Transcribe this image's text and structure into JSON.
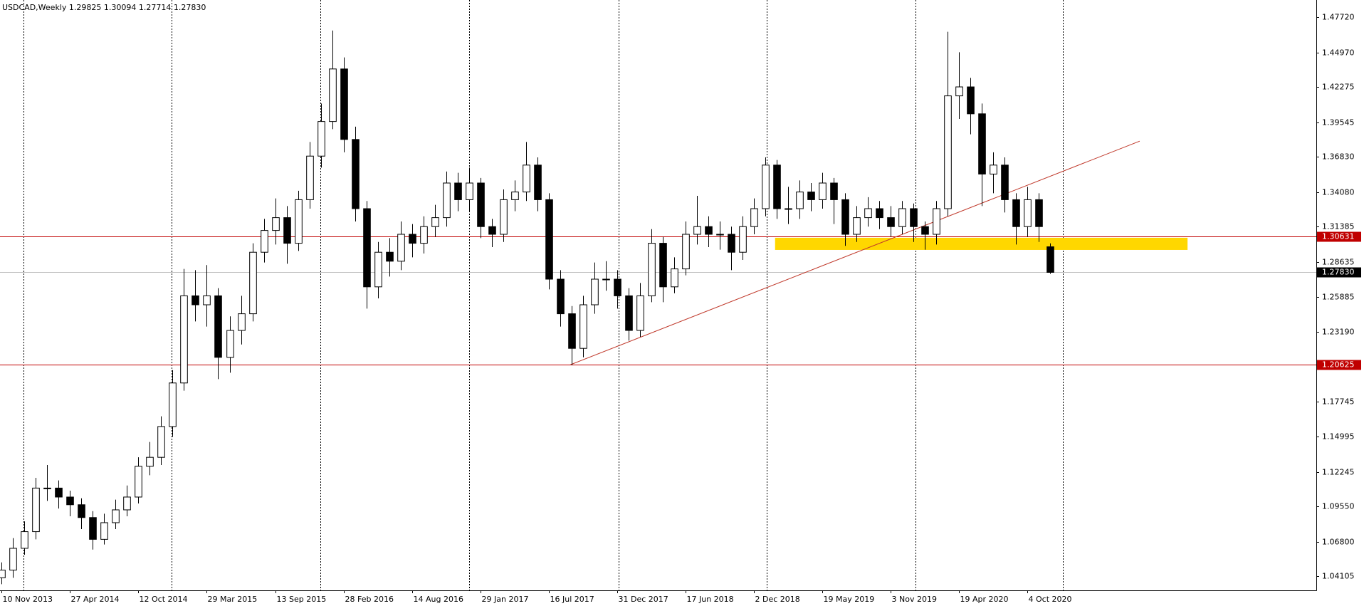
{
  "chart_data": {
    "type": "candlestick",
    "header": "USDCAD,Weekly  1.29825 1.30094 1.27714 1.27830",
    "x": [
      0,
      4,
      8,
      12,
      16,
      20,
      24,
      28,
      32,
      36,
      40,
      44,
      48,
      52,
      56,
      60,
      64,
      68,
      72,
      76,
      80,
      84,
      88,
      92,
      96,
      100,
      104,
      108,
      112,
      116,
      120,
      124,
      128,
      132,
      136,
      140,
      144,
      148,
      152,
      156,
      160,
      164,
      168,
      172,
      176,
      180,
      184,
      188,
      192,
      196,
      200,
      204,
      208,
      212,
      216,
      220,
      224,
      228,
      232,
      236,
      240,
      244,
      248,
      252,
      256,
      260,
      264,
      268,
      272,
      276,
      280,
      284,
      288,
      292,
      296,
      300,
      304,
      308,
      312,
      316,
      320,
      324,
      328,
      332,
      336,
      340,
      344,
      348,
      352,
      356,
      360,
      364,
      368
    ],
    "open": [
      1.04,
      1.046,
      1.063,
      1.076,
      1.11,
      1.11,
      1.103,
      1.097,
      1.087,
      1.07,
      1.083,
      1.093,
      1.103,
      1.127,
      1.134,
      1.158,
      1.192,
      1.26,
      1.253,
      1.26,
      1.212,
      1.233,
      1.246,
      1.294,
      1.311,
      1.321,
      1.301,
      1.335,
      1.369,
      1.396,
      1.437,
      1.382,
      1.328,
      1.267,
      1.294,
      1.287,
      1.308,
      1.301,
      1.314,
      1.321,
      1.348,
      1.335,
      1.348,
      1.314,
      1.308,
      1.335,
      1.341,
      1.362,
      1.335,
      1.273,
      1.246,
      1.219,
      1.253,
      1.273,
      1.273,
      1.26,
      1.233,
      1.26,
      1.301,
      1.267,
      1.281,
      1.308,
      1.314,
      1.308,
      1.308,
      1.294,
      1.314,
      1.328,
      1.362,
      1.328,
      1.328,
      1.341,
      1.335,
      1.348,
      1.335,
      1.308,
      1.321,
      1.328,
      1.321,
      1.314,
      1.328,
      1.314,
      1.308,
      1.328,
      1.416,
      1.423,
      1.402,
      1.355,
      1.362,
      1.335,
      1.314,
      1.335,
      1.29825
    ],
    "high": [
      1.052,
      1.071,
      1.084,
      1.118,
      1.128,
      1.116,
      1.108,
      1.102,
      1.092,
      1.09,
      1.101,
      1.112,
      1.134,
      1.146,
      1.166,
      1.202,
      1.281,
      1.28,
      1.284,
      1.266,
      1.244,
      1.26,
      1.301,
      1.32,
      1.336,
      1.33,
      1.342,
      1.38,
      1.41,
      1.467,
      1.446,
      1.392,
      1.334,
      1.302,
      1.305,
      1.318,
      1.316,
      1.322,
      1.331,
      1.357,
      1.356,
      1.36,
      1.352,
      1.32,
      1.343,
      1.35,
      1.38,
      1.368,
      1.34,
      1.28,
      1.252,
      1.26,
      1.286,
      1.287,
      1.28,
      1.266,
      1.27,
      1.312,
      1.306,
      1.29,
      1.318,
      1.338,
      1.322,
      1.318,
      1.314,
      1.322,
      1.336,
      1.368,
      1.366,
      1.345,
      1.35,
      1.348,
      1.356,
      1.352,
      1.34,
      1.33,
      1.337,
      1.334,
      1.33,
      1.334,
      1.332,
      1.318,
      1.334,
      1.466,
      1.45,
      1.43,
      1.41,
      1.372,
      1.368,
      1.34,
      1.345,
      1.34,
      1.30094
    ],
    "low": [
      1.035,
      1.04,
      1.058,
      1.07,
      1.1,
      1.094,
      1.088,
      1.078,
      1.062,
      1.066,
      1.078,
      1.088,
      1.098,
      1.12,
      1.128,
      1.15,
      1.186,
      1.24,
      1.236,
      1.195,
      1.2,
      1.222,
      1.24,
      1.286,
      1.3,
      1.285,
      1.295,
      1.328,
      1.36,
      1.39,
      1.372,
      1.318,
      1.25,
      1.258,
      1.275,
      1.28,
      1.29,
      1.293,
      1.306,
      1.314,
      1.326,
      1.326,
      1.305,
      1.298,
      1.302,
      1.326,
      1.334,
      1.326,
      1.265,
      1.236,
      1.206,
      1.212,
      1.246,
      1.264,
      1.25,
      1.225,
      1.228,
      1.255,
      1.255,
      1.262,
      1.276,
      1.3,
      1.298,
      1.296,
      1.28,
      1.288,
      1.308,
      1.322,
      1.32,
      1.316,
      1.32,
      1.326,
      1.328,
      1.316,
      1.299,
      1.302,
      1.314,
      1.312,
      1.306,
      1.308,
      1.302,
      1.296,
      1.3,
      1.322,
      1.398,
      1.386,
      1.33,
      1.34,
      1.325,
      1.3,
      1.306,
      1.302,
      1.27714
    ],
    "close": [
      1.046,
      1.063,
      1.076,
      1.11,
      1.11,
      1.103,
      1.097,
      1.087,
      1.07,
      1.083,
      1.093,
      1.103,
      1.127,
      1.134,
      1.158,
      1.192,
      1.26,
      1.253,
      1.26,
      1.212,
      1.233,
      1.246,
      1.294,
      1.311,
      1.321,
      1.301,
      1.335,
      1.369,
      1.396,
      1.437,
      1.382,
      1.328,
      1.267,
      1.294,
      1.287,
      1.308,
      1.301,
      1.314,
      1.321,
      1.348,
      1.335,
      1.348,
      1.314,
      1.308,
      1.335,
      1.341,
      1.362,
      1.335,
      1.273,
      1.246,
      1.219,
      1.253,
      1.273,
      1.273,
      1.26,
      1.233,
      1.26,
      1.301,
      1.267,
      1.281,
      1.308,
      1.314,
      1.308,
      1.308,
      1.294,
      1.314,
      1.328,
      1.362,
      1.328,
      1.328,
      1.341,
      1.335,
      1.348,
      1.335,
      1.308,
      1.321,
      1.328,
      1.321,
      1.314,
      1.328,
      1.314,
      1.308,
      1.328,
      1.416,
      1.423,
      1.402,
      1.355,
      1.362,
      1.335,
      1.314,
      1.335,
      1.314,
      1.2783
    ],
    "up_color": "#ffffff",
    "down_color": "#000000",
    "xlim": [
      -0.6,
      461.5
    ],
    "ylim": [
      1.0302,
      1.4908
    ],
    "xticks": [
      {
        "value": 0,
        "label": "10 Nov 2013"
      },
      {
        "value": 24,
        "label": "27 Apr 2014"
      },
      {
        "value": 48,
        "label": "12 Oct 2014"
      },
      {
        "value": 72,
        "label": "29 Mar 2015"
      },
      {
        "value": 96,
        "label": "13 Sep 2015"
      },
      {
        "value": 120,
        "label": "28 Feb 2016"
      },
      {
        "value": 144,
        "label": "14 Aug 2016"
      },
      {
        "value": 168,
        "label": "29 Jan 2017"
      },
      {
        "value": 192,
        "label": "16 Jul 2017"
      },
      {
        "value": 216,
        "label": "31 Dec 2017"
      },
      {
        "value": 240,
        "label": "17 Jun 2018"
      },
      {
        "value": 264,
        "label": "2 Dec 2018"
      },
      {
        "value": 288,
        "label": "19 May 2019"
      },
      {
        "value": 312,
        "label": "3 Nov 2019"
      },
      {
        "value": 336,
        "label": "19 Apr 2020"
      },
      {
        "value": 360,
        "label": "4 Oct 2020"
      }
    ],
    "yticks": [
      {
        "value": 1.4772,
        "label": "1.47720"
      },
      {
        "value": 1.4497,
        "label": "1.44970"
      },
      1.42275,
      1.39545,
      {
        "value": 1.3683,
        "label": "1.36830"
      },
      {
        "value": 1.3408,
        "label": "1.34080"
      },
      1.31385,
      1.28635,
      1.25885,
      {
        "value": 1.2319,
        "label": "1.23190"
      },
      1.17745,
      1.14995,
      1.12245,
      {
        "value": 1.0955,
        "label": "1.09550"
      },
      {
        "value": 1.068,
        "label": "1.06800"
      },
      1.04105
    ],
    "grid": false,
    "period_separators": [
      7.6,
      59.6,
      111.8,
      164,
      216.6,
      268.5,
      320.7,
      372.6
    ],
    "hlines": [
      {
        "value": 1.30631,
        "label": "1.30631",
        "color": "#c00000",
        "label_color": "#ffffff"
      },
      {
        "value": 1.20625,
        "label": "1.20625",
        "color": "#c00000",
        "label_color": "#ffffff"
      },
      {
        "value": 1.2783,
        "label": "1.27830",
        "color": "#c0c0c0",
        "label_color": "#ffffff",
        "label_background": "#000000"
      }
    ],
    "trendline": {
      "x": [
        199.6,
        399.5
      ],
      "y": [
        1.2062,
        1.3807
      ],
      "color": "#c0392b"
    },
    "zone": {
      "x": [
        271.5,
        416.3
      ],
      "y": [
        1.2958,
        1.3053
      ],
      "color": "#ffd700"
    }
  }
}
